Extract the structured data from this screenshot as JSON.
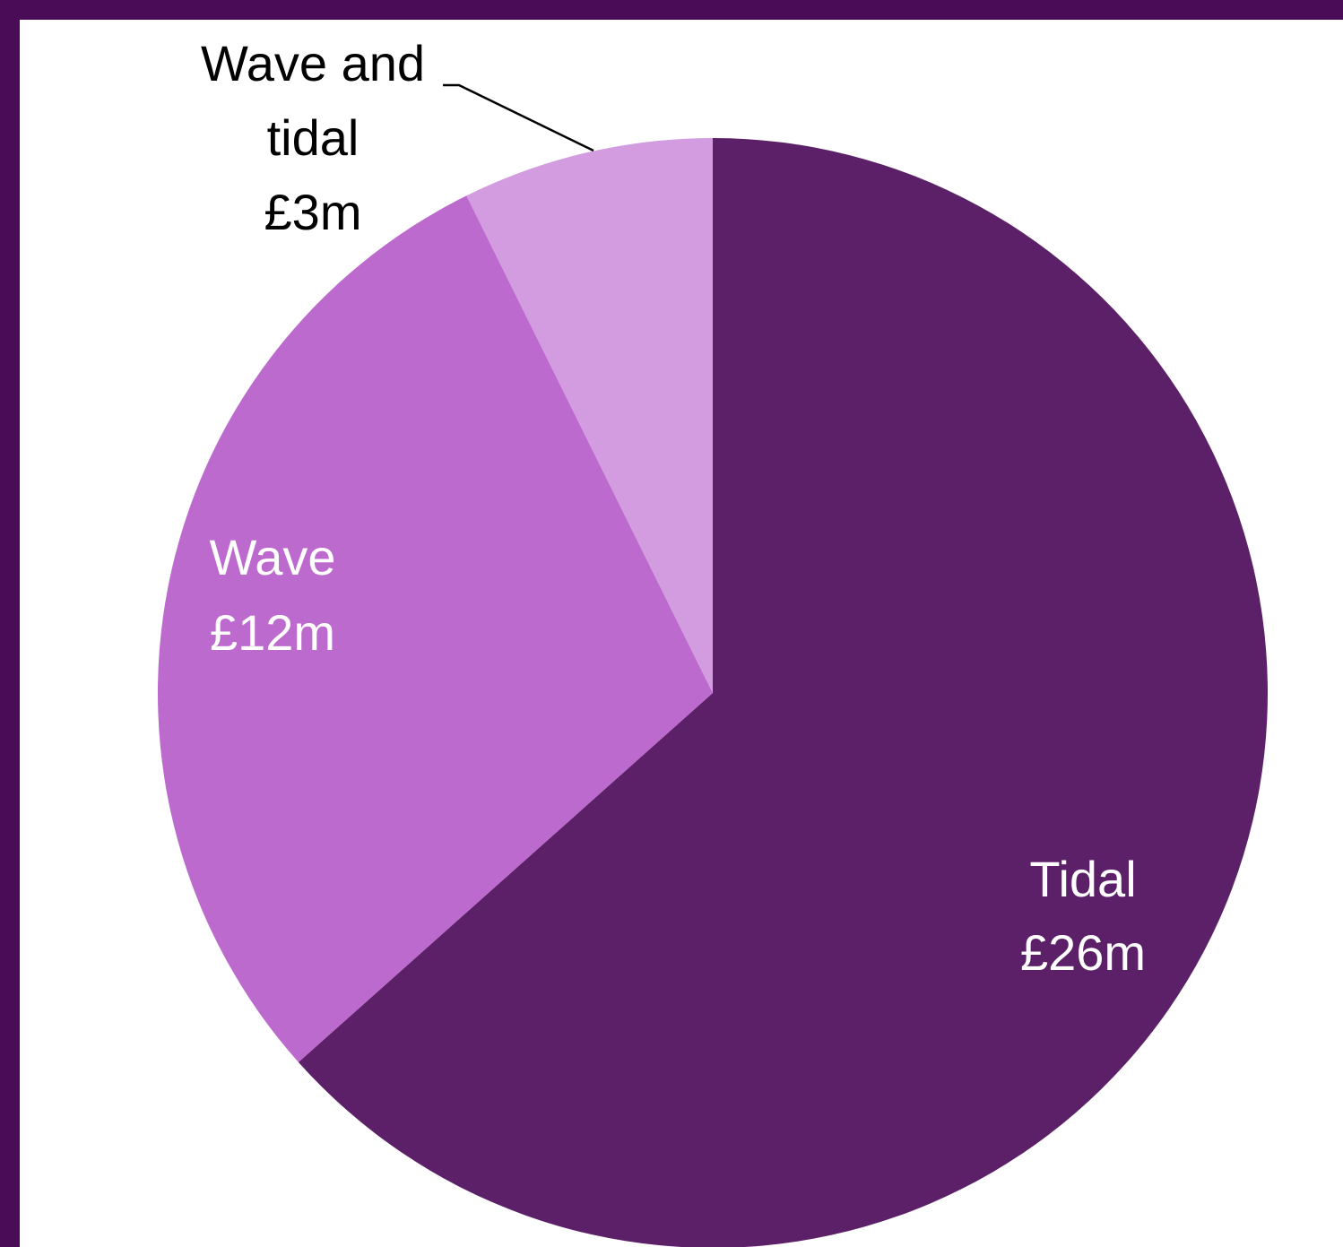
{
  "chart_data": {
    "type": "pie",
    "title": "",
    "slices": [
      {
        "label": "Tidal",
        "value_label": "£26m",
        "value": 26,
        "color": "#5c2068",
        "text_color": "#ffffff"
      },
      {
        "label": "Wave",
        "value_label": "£12m",
        "value": 12,
        "color": "#bd6ace",
        "text_color": "#ffffff"
      },
      {
        "label_lines": [
          "Wave and",
          "tidal"
        ],
        "value_label": "£3m",
        "value": 3,
        "color": "#d39be0",
        "text_color": "#000000"
      }
    ]
  },
  "colors": {
    "border": "#4a0b57",
    "background": "#ffffff"
  }
}
